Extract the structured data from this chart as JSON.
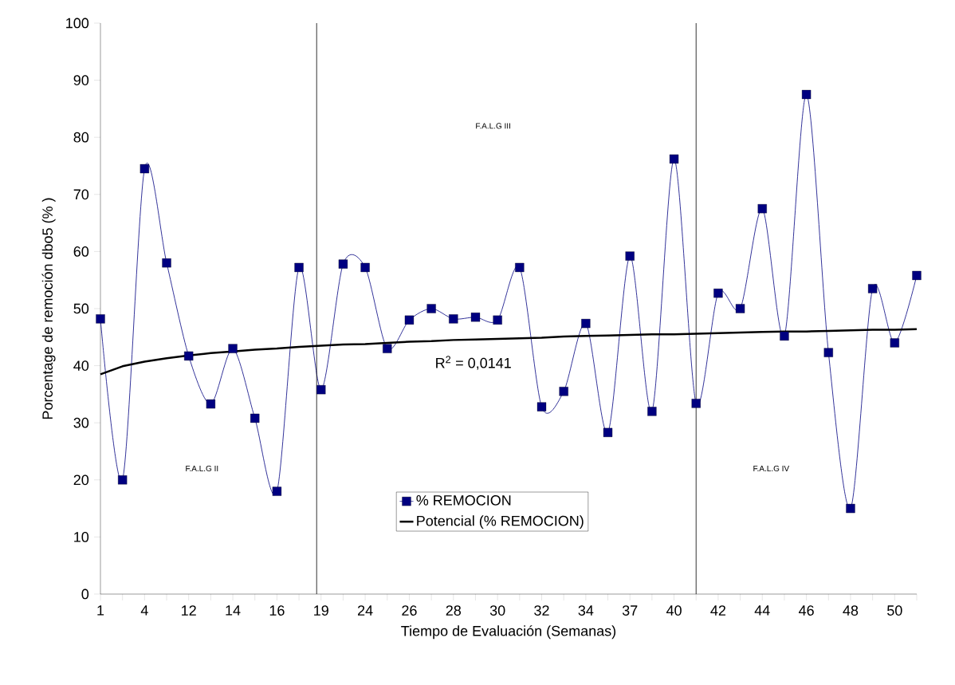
{
  "chart_data": {
    "type": "line",
    "xlabel": "Tiempo de Evaluación (Semanas)",
    "ylabel": "Porcentage de remoción dbo5 (% )",
    "categories": [
      "1",
      null,
      "4",
      null,
      "12",
      null,
      "14",
      null,
      "16",
      null,
      "19",
      null,
      "24",
      null,
      "26",
      null,
      "28",
      null,
      "30",
      null,
      "32",
      null,
      "34",
      null,
      "37",
      null,
      "40",
      null,
      "42",
      null,
      "44",
      null,
      "46",
      null,
      "48",
      null,
      "50",
      null
    ],
    "ylim": [
      0,
      100
    ],
    "yticks": [
      0,
      10,
      20,
      30,
      40,
      50,
      60,
      70,
      80,
      90,
      100
    ],
    "legend": "bottom",
    "series": [
      {
        "name": "% REMOCION",
        "color": "#000080",
        "marker": "square",
        "values": [
          48.2,
          20,
          74.5,
          58,
          41.7,
          33.3,
          43,
          30.8,
          18,
          57.2,
          35.8,
          57.8,
          57.2,
          43,
          48,
          50,
          48.2,
          48.5,
          48,
          57.2,
          32.8,
          35.5,
          47.4,
          28.3,
          59.2,
          32,
          76.2,
          33.4,
          52.7,
          50,
          67.5,
          45.2,
          87.5,
          42.3,
          15,
          53.5,
          44,
          55.8
        ]
      },
      {
        "name": "Potencial (% REMOCION)",
        "color": "#000000",
        "marker": "none",
        "values": [
          38.5,
          39.9,
          40.7,
          41.3,
          41.8,
          42.2,
          42.5,
          42.8,
          43.0,
          43.3,
          43.5,
          43.7,
          43.8,
          44.0,
          44.2,
          44.3,
          44.5,
          44.6,
          44.7,
          44.8,
          44.9,
          45.1,
          45.2,
          45.3,
          45.4,
          45.5,
          45.5,
          45.6,
          45.7,
          45.8,
          45.9,
          46.0,
          46.0,
          46.1,
          46.2,
          46.3,
          46.3,
          46.4
        ]
      }
    ],
    "annotations": [
      "F.A.L.G II",
      "F.A.L.G III",
      "F.A.L.G IV",
      "R$^{2}$ = 0,0141"
    ]
  }
}
